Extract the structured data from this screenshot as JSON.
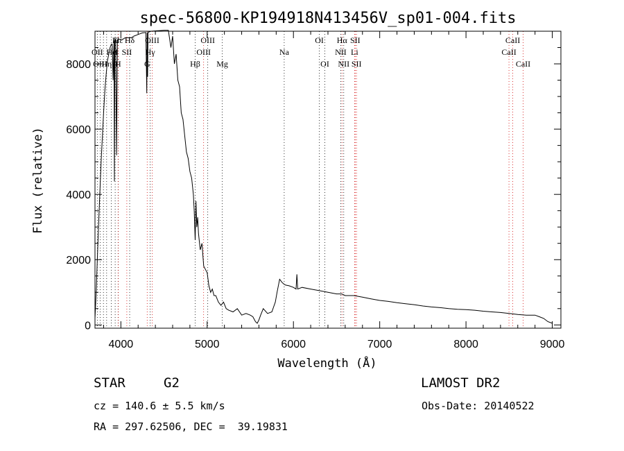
{
  "chart_data": {
    "type": "line",
    "title": "spec-56800-KP194918N413456V_sp01-004.fits",
    "xlabel": "Wavelength (Å)",
    "ylabel": "Flux (relative)",
    "xlim": [
      3700,
      9100
    ],
    "ylim": [
      -100,
      9000
    ],
    "xticks": [
      4000,
      5000,
      6000,
      7000,
      8000,
      9000
    ],
    "yticks": [
      0,
      2000,
      4000,
      6000,
      8000
    ],
    "grid": false,
    "series": [
      {
        "x": [
          3700,
          3715,
          3730,
          3745,
          3760,
          3775,
          3790,
          3800,
          3815,
          3830,
          3845,
          3860,
          3875,
          3890,
          3900,
          3910,
          3920,
          3925,
          3930,
          3934,
          3940,
          3950,
          3960,
          3965,
          3968,
          3972,
          3980,
          3990,
          4000,
          4020,
          4050,
          4080,
          4100,
          4120,
          4150,
          4200,
          4250,
          4290,
          4300,
          4305,
          4310,
          4315,
          4330,
          4350,
          4400,
          4450,
          4500,
          4550,
          4580,
          4600,
          4620,
          4640,
          4660,
          4680,
          4700,
          4720,
          4740,
          4760,
          4780,
          4800,
          4820,
          4840,
          4850,
          4861,
          4870,
          4880,
          4890,
          4900,
          4920,
          4940,
          4960,
          4980,
          5000,
          5020,
          5040,
          5060,
          5080,
          5100,
          5130,
          5160,
          5190,
          5220,
          5250,
          5300,
          5350,
          5400,
          5450,
          5500,
          5530,
          5560,
          5580,
          5600,
          5620,
          5650,
          5700,
          5750,
          5790,
          5810,
          5840,
          5870,
          5890,
          5910,
          5950,
          6000,
          6030,
          6040,
          6050,
          6100,
          6200,
          6300,
          6400,
          6500,
          6560,
          6600,
          6700,
          6800,
          6900,
          7000,
          7100,
          7200,
          7300,
          7400,
          7500,
          7600,
          7700,
          7800,
          7900,
          8000,
          8100,
          8200,
          8300,
          8400,
          8500,
          8600,
          8700,
          8800,
          8850,
          8900,
          8950,
          9000
        ],
        "y": [
          200,
          1100,
          2200,
          3300,
          4300,
          5200,
          6000,
          6500,
          7200,
          7700,
          8100,
          8300,
          8500,
          8600,
          8600,
          7500,
          8700,
          4400,
          8700,
          8700,
          8750,
          5200,
          8750,
          8700,
          8750,
          8750,
          8750,
          8750,
          8750,
          8750,
          8800,
          8800,
          8800,
          8800,
          8850,
          8900,
          8950,
          8960,
          7100,
          8960,
          7600,
          8970,
          8980,
          9000,
          9010,
          9020,
          9030,
          9030,
          8500,
          8850,
          8000,
          8300,
          7500,
          7300,
          6500,
          6300,
          5800,
          5300,
          5100,
          4700,
          4500,
          4000,
          3500,
          2600,
          3800,
          3000,
          3300,
          2800,
          2300,
          2500,
          1800,
          1700,
          1600,
          1200,
          1000,
          1100,
          900,
          900,
          700,
          600,
          700,
          500,
          450,
          400,
          500,
          300,
          350,
          300,
          250,
          100,
          50,
          150,
          300,
          500,
          350,
          400,
          700,
          1000,
          1400,
          1300,
          1250,
          1220,
          1200,
          1150,
          1100,
          1550,
          1100,
          1150,
          1100,
          1050,
          1000,
          950,
          950,
          900,
          900,
          850,
          800,
          750,
          720,
          680,
          650,
          620,
          580,
          550,
          530,
          500,
          480,
          470,
          450,
          420,
          400,
          380,
          350,
          320,
          300,
          300,
          250,
          200,
          100,
          50
        ]
      }
    ],
    "line_labels_top": [
      {
        "text": "Hε",
        "w": 3970
      },
      {
        "text": "K",
        "w": 3934
      },
      {
        "text": "Hδ",
        "w": 4102
      },
      {
        "text": "OIII",
        "w": 4363
      },
      {
        "text": "OIII",
        "w": 5007
      },
      {
        "text": "OI",
        "w": 6300
      },
      {
        "text": "Hα",
        "w": 6563
      },
      {
        "text": "SII",
        "w": 6716
      },
      {
        "text": "CaII",
        "w": 8542
      }
    ],
    "line_labels_mid": [
      {
        "text": "OII",
        "w": 3727
      },
      {
        "text": "He",
        "w": 3889
      },
      {
        "text": "I",
        "w": 3950
      },
      {
        "text": "SII",
        "w": 4069
      },
      {
        "text": "Hγ",
        "w": 4340
      },
      {
        "text": "OIII",
        "w": 4959
      },
      {
        "text": "Na",
        "w": 5893
      },
      {
        "text": "NII",
        "w": 6548
      },
      {
        "text": "Li",
        "w": 6708
      },
      {
        "text": "CaII",
        "w": 8498
      }
    ],
    "line_labels_low": [
      {
        "text": "OIII",
        "w": 3760
      },
      {
        "text": "Hη",
        "w": 3835
      },
      {
        "text": "H",
        "w": 3968
      },
      {
        "text": "G",
        "w": 4305
      },
      {
        "text": "Hβ",
        "w": 4861
      },
      {
        "text": "Mg",
        "w": 5175
      },
      {
        "text": "OI",
        "w": 6364
      },
      {
        "text": "NII",
        "w": 6583
      },
      {
        "text": "SII",
        "w": 6731
      },
      {
        "text": "CaII",
        "w": 8662
      }
    ],
    "line_markers_black": [
      3727,
      3760,
      3798,
      3835,
      3889,
      3934,
      3970,
      4102,
      4340,
      4861,
      5007,
      5175,
      5893,
      6300,
      6364,
      6548,
      6583
    ],
    "line_markers_red": [
      3968,
      4069,
      4305,
      4363,
      4959,
      6563,
      6708,
      6716,
      6731,
      8498,
      8542,
      8662
    ]
  },
  "info": {
    "object": "STAR",
    "subclass": "G2",
    "survey": "LAMOST DR2",
    "cz": "cz = 140.6 ± 5.5 km/s",
    "obs_date": "Obs-Date: 20140522",
    "coords": "RA = 297.62506, DEC =  39.19831"
  }
}
